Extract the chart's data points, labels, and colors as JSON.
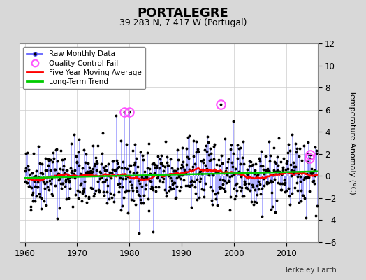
{
  "title": "PORTALEGRE",
  "subtitle": "39.283 N, 7.417 W (Portugal)",
  "ylabel": "Temperature Anomaly (°C)",
  "credit": "Berkeley Earth",
  "xlim": [
    1959,
    2016
  ],
  "ylim": [
    -6,
    12
  ],
  "yticks": [
    -6,
    -4,
    -2,
    0,
    2,
    4,
    6,
    8,
    10,
    12
  ],
  "xticks": [
    1960,
    1970,
    1980,
    1990,
    2000,
    2010
  ],
  "background_color": "#d8d8d8",
  "plot_bg_color": "#ffffff",
  "raw_line_color": "#5555ff",
  "raw_marker_color": "#000000",
  "moving_avg_color": "#ff0000",
  "trend_color": "#00cc00",
  "qc_fail_color": "#ff55ff",
  "seed": 42,
  "n_months": 672,
  "start_year": 1960.0,
  "qc_fail_times": [
    1979.0,
    1980.0,
    1997.5
  ],
  "qc_fail_values": [
    5.8,
    5.8,
    6.5
  ],
  "qc_fail_times2": [
    2014.5,
    2014.6
  ],
  "qc_fail_values2": [
    1.6,
    1.9
  ]
}
